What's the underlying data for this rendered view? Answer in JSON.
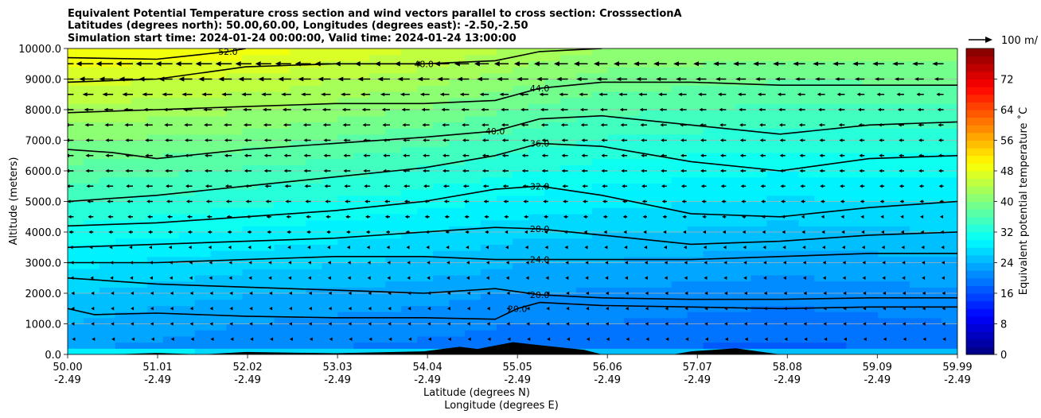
{
  "chart_data": {
    "type": "heatmap",
    "title_lines": [
      "Equivalent Potential Temperature cross section and wind vectors parallel to cross section: CrosssectionA",
      "Latitudes (degrees north): 50.00,60.00, Longitudes (degrees east): -2.50,-2.50",
      "Simulation start time: 2024-01-24 00:00:00, Valid time: 2024-01-24 13:00:00"
    ],
    "xlabel": "Latitude (degrees N)",
    "xlabel2": "Longitude (degrees E)",
    "ylabel": "Altitude (meters)",
    "xlim": [
      50.0,
      59.99
    ],
    "ylim": [
      0,
      10000
    ],
    "x_ticks": [
      {
        "value": 50.0,
        "lat": "50.00",
        "lon": "-2.49"
      },
      {
        "value": 51.01,
        "lat": "51.01",
        "lon": "-2.49"
      },
      {
        "value": 52.02,
        "lat": "52.02",
        "lon": "-2.49"
      },
      {
        "value": 53.03,
        "lat": "53.03",
        "lon": "-2.49"
      },
      {
        "value": 54.04,
        "lat": "54.04",
        "lon": "-2.49"
      },
      {
        "value": 55.05,
        "lat": "55.05",
        "lon": "-2.49"
      },
      {
        "value": 56.06,
        "lat": "56.06",
        "lon": "-2.49"
      },
      {
        "value": 57.07,
        "lat": "57.07",
        "lon": "-2.49"
      },
      {
        "value": 58.08,
        "lat": "58.08",
        "lon": "-2.49"
      },
      {
        "value": 59.09,
        "lat": "59.09",
        "lon": "-2.49"
      },
      {
        "value": 59.99,
        "lat": "59.99",
        "lon": "-2.49"
      }
    ],
    "y_ticks": [
      {
        "value": 0,
        "label": "0.0"
      },
      {
        "value": 1000,
        "label": "1000.0"
      },
      {
        "value": 2000,
        "label": "2000.0"
      },
      {
        "value": 3000,
        "label": "3000.0"
      },
      {
        "value": 4000,
        "label": "4000.0"
      },
      {
        "value": 5000,
        "label": "5000.0"
      },
      {
        "value": 6000,
        "label": "6000.0"
      },
      {
        "value": 7000,
        "label": "7000.0"
      },
      {
        "value": 8000,
        "label": "8000.0"
      },
      {
        "value": 9000,
        "label": "9000.0"
      },
      {
        "value": 10000,
        "label": "10000.0"
      }
    ],
    "grid": "horizontal",
    "colorbar": {
      "label": "Equivalent potential temperature $^\\circ$C",
      "label_display": "Equivalent potential temperature ˚C",
      "min": 0,
      "max": 80,
      "tick_values": [
        0,
        8,
        16,
        24,
        32,
        40,
        48,
        56,
        64,
        72
      ],
      "tick_labels": [
        "0",
        "8",
        "16",
        "24",
        "32",
        "40",
        "48",
        "56",
        "64",
        "72"
      ],
      "levels_step": 2,
      "colormap": "jet"
    },
    "quiver_key": {
      "label": "100 m/"
    },
    "theta_e_profiles": [
      {
        "lat": 50.0,
        "theta_surface": 27,
        "theta_top": 50
      },
      {
        "lat": 52.0,
        "theta_surface": 25,
        "theta_top": 49
      },
      {
        "lat": 54.0,
        "theta_surface": 24,
        "theta_top": 46
      },
      {
        "lat": 55.0,
        "theta_surface": 23,
        "theta_top": 44
      },
      {
        "lat": 56.0,
        "theta_surface": 23,
        "theta_top": 42
      },
      {
        "lat": 58.0,
        "theta_surface": 22,
        "theta_top": 41
      },
      {
        "lat": 59.99,
        "theta_surface": 23,
        "theta_top": 41
      }
    ],
    "contours": [
      {
        "level": 20.0,
        "label": "20.0",
        "points": [
          [
            50.0,
            1500
          ],
          [
            50.3,
            1300
          ],
          [
            51.0,
            1350
          ],
          [
            52.0,
            1250
          ],
          [
            53.0,
            1200
          ],
          [
            54.0,
            1200
          ],
          [
            54.8,
            1150
          ],
          [
            55.05,
            1500
          ],
          [
            55.3,
            1700
          ],
          [
            56.0,
            1600
          ],
          [
            57.0,
            1550
          ],
          [
            58.0,
            1500
          ],
          [
            59.0,
            1550
          ],
          [
            59.99,
            1550
          ]
        ]
      },
      {
        "level": 20.0,
        "label": "20.0",
        "points": [
          [
            50.0,
            2500
          ],
          [
            51.0,
            2300
          ],
          [
            52.0,
            2200
          ],
          [
            53.0,
            2100
          ],
          [
            54.0,
            2000
          ],
          [
            54.8,
            2150
          ],
          [
            55.3,
            1950
          ],
          [
            56.0,
            1850
          ],
          [
            57.0,
            1800
          ],
          [
            58.0,
            1800
          ],
          [
            59.0,
            1850
          ],
          [
            59.99,
            1850
          ]
        ]
      },
      {
        "level": 24.0,
        "label": "24.0",
        "points": [
          [
            50.0,
            3000
          ],
          [
            51.0,
            3000
          ],
          [
            52.0,
            3100
          ],
          [
            53.0,
            3200
          ],
          [
            54.0,
            3200
          ],
          [
            54.8,
            3100
          ],
          [
            55.3,
            3100
          ],
          [
            56.0,
            3100
          ],
          [
            57.0,
            3100
          ],
          [
            58.0,
            3200
          ],
          [
            59.0,
            3300
          ],
          [
            59.99,
            3300
          ]
        ]
      },
      {
        "level": 28.0,
        "label": "28.0",
        "points": [
          [
            50.0,
            3500
          ],
          [
            51.0,
            3600
          ],
          [
            52.0,
            3700
          ],
          [
            53.0,
            3800
          ],
          [
            54.0,
            4000
          ],
          [
            54.8,
            4150
          ],
          [
            55.3,
            4100
          ],
          [
            56.0,
            3900
          ],
          [
            57.0,
            3600
          ],
          [
            58.0,
            3700
          ],
          [
            59.0,
            3900
          ],
          [
            59.99,
            4000
          ]
        ]
      },
      {
        "level": 32.0,
        "label": "32.0",
        "points": [
          [
            50.0,
            4200
          ],
          [
            51.0,
            4300
          ],
          [
            52.0,
            4500
          ],
          [
            53.0,
            4700
          ],
          [
            54.0,
            5000
          ],
          [
            54.8,
            5400
          ],
          [
            55.3,
            5500
          ],
          [
            56.0,
            5200
          ],
          [
            57.0,
            4600
          ],
          [
            58.0,
            4500
          ],
          [
            59.0,
            4800
          ],
          [
            59.99,
            5000
          ]
        ]
      },
      {
        "level": 36.0,
        "label": "36.0",
        "points": [
          [
            50.0,
            5000
          ],
          [
            51.0,
            5200
          ],
          [
            52.0,
            5500
          ],
          [
            53.0,
            5800
          ],
          [
            54.0,
            6100
          ],
          [
            54.8,
            6500
          ],
          [
            55.3,
            6900
          ],
          [
            56.0,
            6800
          ],
          [
            57.0,
            6300
          ],
          [
            58.0,
            6000
          ],
          [
            59.0,
            6400
          ],
          [
            59.99,
            6500
          ]
        ]
      },
      {
        "level": 40.0,
        "label": "40.0",
        "points": [
          [
            50.0,
            6700
          ],
          [
            50.5,
            6600
          ],
          [
            51.0,
            6400
          ],
          [
            52.0,
            6700
          ],
          [
            53.0,
            6900
          ],
          [
            54.0,
            7100
          ],
          [
            54.8,
            7300
          ],
          [
            55.3,
            7700
          ],
          [
            56.0,
            7800
          ],
          [
            57.0,
            7500
          ],
          [
            58.0,
            7200
          ],
          [
            59.0,
            7500
          ],
          [
            59.99,
            7600
          ]
        ]
      },
      {
        "level": 44.0,
        "label": "44.0",
        "points": [
          [
            50.0,
            7900
          ],
          [
            51.0,
            8000
          ],
          [
            52.0,
            8100
          ],
          [
            53.0,
            8200
          ],
          [
            54.0,
            8200
          ],
          [
            54.8,
            8300
          ],
          [
            55.3,
            8700
          ],
          [
            56.0,
            8900
          ],
          [
            57.0,
            8900
          ],
          [
            58.0,
            8800
          ],
          [
            59.0,
            8800
          ],
          [
            59.99,
            8800
          ]
        ]
      },
      {
        "level": 48.0,
        "label": "48.0",
        "points": [
          [
            50.0,
            8900
          ],
          [
            51.0,
            9000
          ],
          [
            52.0,
            9400
          ],
          [
            53.0,
            9500
          ],
          [
            54.0,
            9500
          ],
          [
            54.8,
            9600
          ],
          [
            55.3,
            9900
          ],
          [
            56.0,
            10000
          ]
        ]
      },
      {
        "level": 52.0,
        "label": "52.0",
        "points": [
          [
            50.0,
            9700
          ],
          [
            51.0,
            9650
          ],
          [
            51.8,
            9900
          ],
          [
            52.0,
            10000
          ]
        ]
      }
    ],
    "terrain": [
      [
        50.0,
        0
      ],
      [
        50.5,
        0
      ],
      [
        51.0,
        50
      ],
      [
        51.5,
        0
      ],
      [
        52.0,
        80
      ],
      [
        53.0,
        40
      ],
      [
        54.0,
        100
      ],
      [
        54.4,
        250
      ],
      [
        54.6,
        180
      ],
      [
        55.0,
        400
      ],
      [
        55.3,
        300
      ],
      [
        55.8,
        150
      ],
      [
        56.0,
        0
      ],
      [
        56.8,
        0
      ],
      [
        57.0,
        100
      ],
      [
        57.5,
        200
      ],
      [
        58.0,
        0
      ],
      [
        59.99,
        0
      ]
    ],
    "wind_vectors": [
      {
        "z": 9500,
        "magnitude": 22
      },
      {
        "z": 9000,
        "magnitude": 18
      },
      {
        "z": 8500,
        "magnitude": 14
      },
      {
        "z": 8000,
        "magnitude": 12
      },
      {
        "z": 7500,
        "magnitude": 11
      },
      {
        "z": 7000,
        "magnitude": 10
      },
      {
        "z": 6500,
        "magnitude": 10
      },
      {
        "z": 6000,
        "magnitude": 10
      },
      {
        "z": 5500,
        "magnitude": 9
      },
      {
        "z": 5000,
        "magnitude": 8
      },
      {
        "z": 4500,
        "magnitude": 7
      },
      {
        "z": 4000,
        "magnitude": 6
      },
      {
        "z": 3500,
        "magnitude": 5
      },
      {
        "z": 3000,
        "magnitude": 4
      },
      {
        "z": 2500,
        "magnitude": 4
      },
      {
        "z": 2000,
        "magnitude": 3
      },
      {
        "z": 1500,
        "magnitude": 3
      },
      {
        "z": 1000,
        "magnitude": 3
      },
      {
        "z": 500,
        "magnitude": 2
      }
    ]
  }
}
